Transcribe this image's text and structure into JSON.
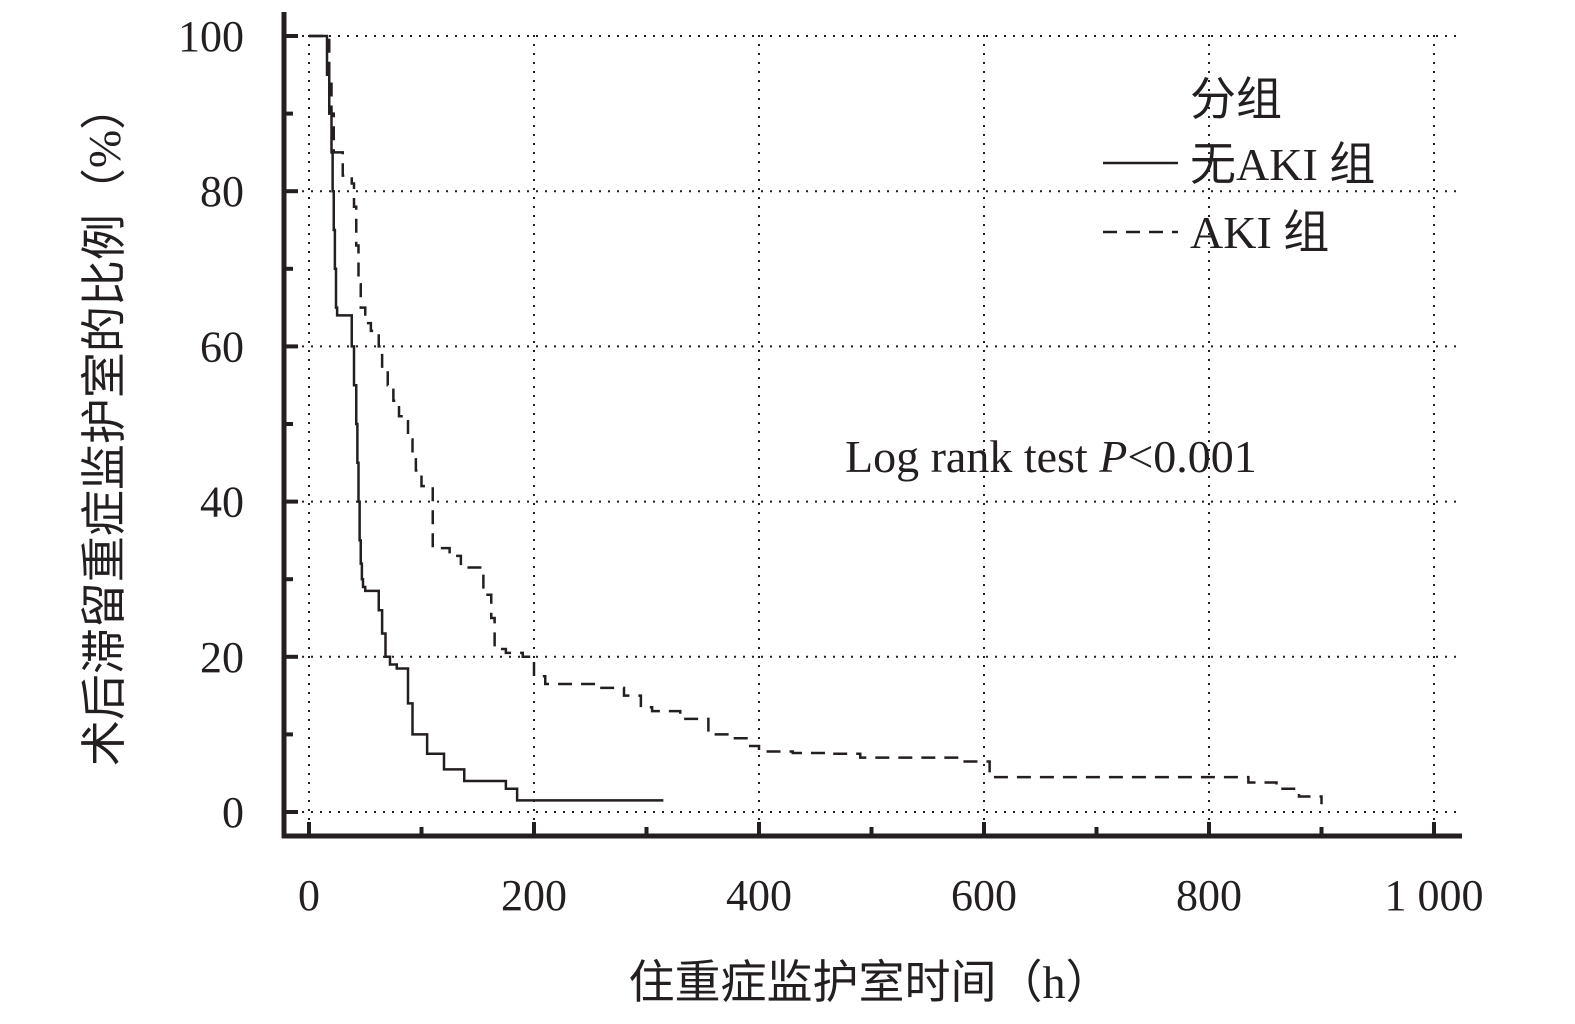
{
  "chart_data": {
    "type": "line",
    "step": true,
    "xlabel": "住重症监护室时间（h）",
    "ylabel": "术后滞留重症监护室的比例（%）",
    "xlim": [
      -10,
      1025
    ],
    "ylim": [
      -3,
      100
    ],
    "x_ticks": [
      0,
      200,
      400,
      600,
      800,
      1000
    ],
    "x_tick_labels": [
      "0",
      "200",
      "400",
      "600",
      "800",
      "1 000"
    ],
    "y_ticks": [
      0,
      20,
      40,
      60,
      80,
      100
    ],
    "y_tick_labels": [
      "0",
      "20",
      "40",
      "60",
      "80",
      "100"
    ],
    "grid": true,
    "grid_style": "dotted",
    "legend": {
      "title": "分组",
      "placement": "top-right",
      "entries": [
        "无AKI 组",
        "AKI 组"
      ]
    },
    "annotation": {
      "prefix": "Log rank test ",
      "italic": "P",
      "suffix": "<0.001"
    },
    "series": [
      {
        "name": "无AKI 组",
        "line_style": "solid",
        "x": [
          0,
          13,
          16,
          18,
          20,
          21,
          22,
          23,
          24,
          25,
          28,
          35,
          38,
          40,
          42,
          43,
          44,
          45,
          46,
          47,
          48,
          50,
          55,
          62,
          65,
          68,
          72,
          78,
          88,
          92,
          105,
          120,
          138,
          175,
          185,
          200,
          265,
          315
        ],
        "y": [
          100,
          100,
          95,
          90,
          85,
          80,
          75,
          70,
          65,
          64,
          64,
          64,
          60,
          55,
          50,
          45,
          40,
          35,
          32,
          30,
          29,
          28.5,
          28.5,
          26,
          23,
          20,
          19,
          18.5,
          14,
          10,
          7.5,
          5.5,
          4,
          3,
          1.5,
          1.5,
          1.5,
          1.5
        ]
      },
      {
        "name": "AKI 组",
        "line_style": "dashed",
        "x": [
          0,
          15,
          18,
          20,
          22,
          30,
          38,
          40,
          42,
          44,
          46,
          50,
          55,
          62,
          65,
          70,
          75,
          80,
          88,
          92,
          95,
          100,
          110,
          125,
          135,
          155,
          162,
          165,
          175,
          190,
          200,
          210,
          255,
          280,
          295,
          305,
          330,
          355,
          375,
          390,
          400,
          430,
          460,
          490,
          530,
          580,
          605,
          700,
          820,
          835,
          860,
          880,
          900
        ],
        "y": [
          100,
          100,
          95,
          90,
          85,
          82,
          81,
          78,
          73,
          68,
          65,
          63,
          62,
          60,
          57,
          55,
          53,
          51,
          48,
          46,
          44,
          42,
          34,
          33,
          31.5,
          28,
          25,
          21,
          20.5,
          20,
          17.5,
          16.5,
          16,
          15,
          13.5,
          13,
          12,
          10,
          9.5,
          8.5,
          7.8,
          7.6,
          7.5,
          7,
          7,
          6.5,
          4.5,
          4.5,
          4.5,
          3.8,
          3,
          2,
          1
        ]
      }
    ]
  }
}
